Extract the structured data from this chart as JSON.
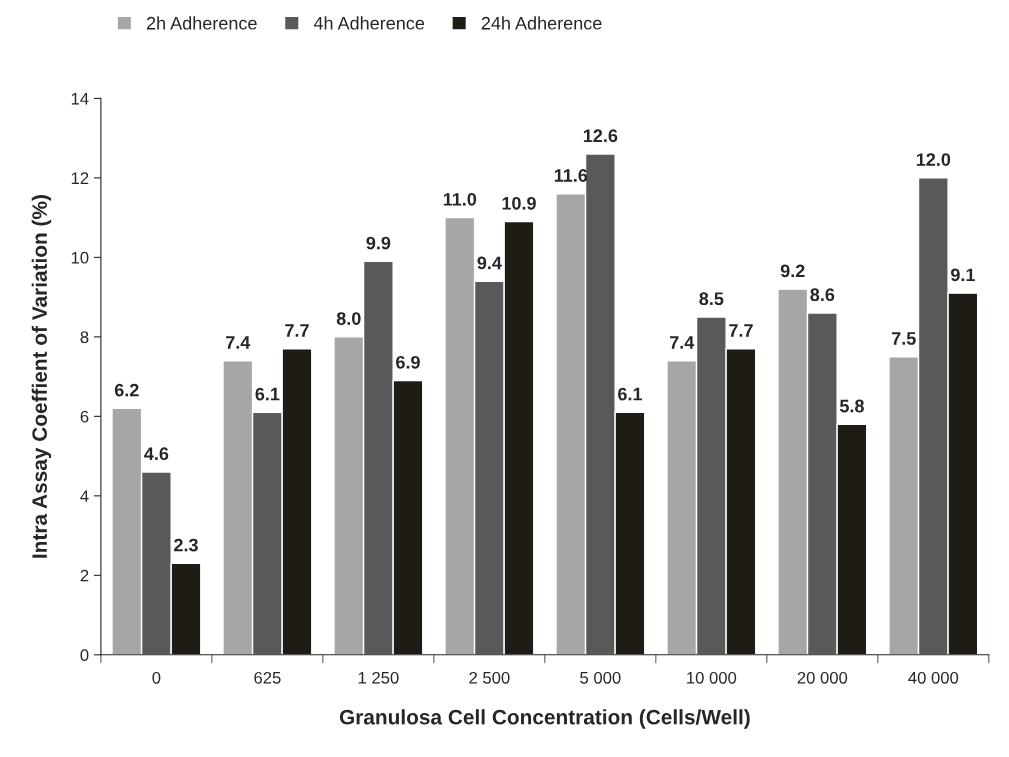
{
  "chart_data": {
    "type": "bar",
    "xlabel": "Granulosa Cell Concentration (Cells/Well)",
    "ylabel": "Intra Assay Coeffient of Variation (%)",
    "categories": [
      "0",
      "625",
      "1 250",
      "2 500",
      "5 000",
      "10 000",
      "20 000",
      "40 000"
    ],
    "series": [
      {
        "name": "2h Adherence",
        "color": "#a6a6a6",
        "values": [
          6.2,
          7.4,
          8.0,
          11.0,
          11.6,
          7.4,
          9.2,
          7.5
        ],
        "value_labels": [
          "6.2",
          "7.4",
          "8.0",
          "11.0",
          "11.6",
          "7.4",
          "9.2",
          "7.5"
        ]
      },
      {
        "name": "4h Adherence",
        "color": "#595959",
        "values": [
          4.6,
          6.1,
          9.9,
          9.4,
          12.6,
          8.5,
          8.6,
          12.0
        ],
        "value_labels": [
          "4.6",
          "6.1",
          "9.9",
          "9.4",
          "12.6",
          "8.5",
          "8.6",
          "12.0"
        ]
      },
      {
        "name": "24h Adherence",
        "color": "#1e1c14",
        "values": [
          2.3,
          7.7,
          6.9,
          10.9,
          6.1,
          7.7,
          5.8,
          9.1
        ],
        "value_labels": [
          "2.3",
          "7.7",
          "6.9",
          "10.9",
          "6.1",
          "7.7",
          "5.8",
          "9.1"
        ]
      }
    ],
    "ylim": [
      0,
      14
    ],
    "yticks": [
      0,
      2,
      4,
      6,
      8,
      10,
      12,
      14
    ],
    "grid": false,
    "legend": "top"
  }
}
